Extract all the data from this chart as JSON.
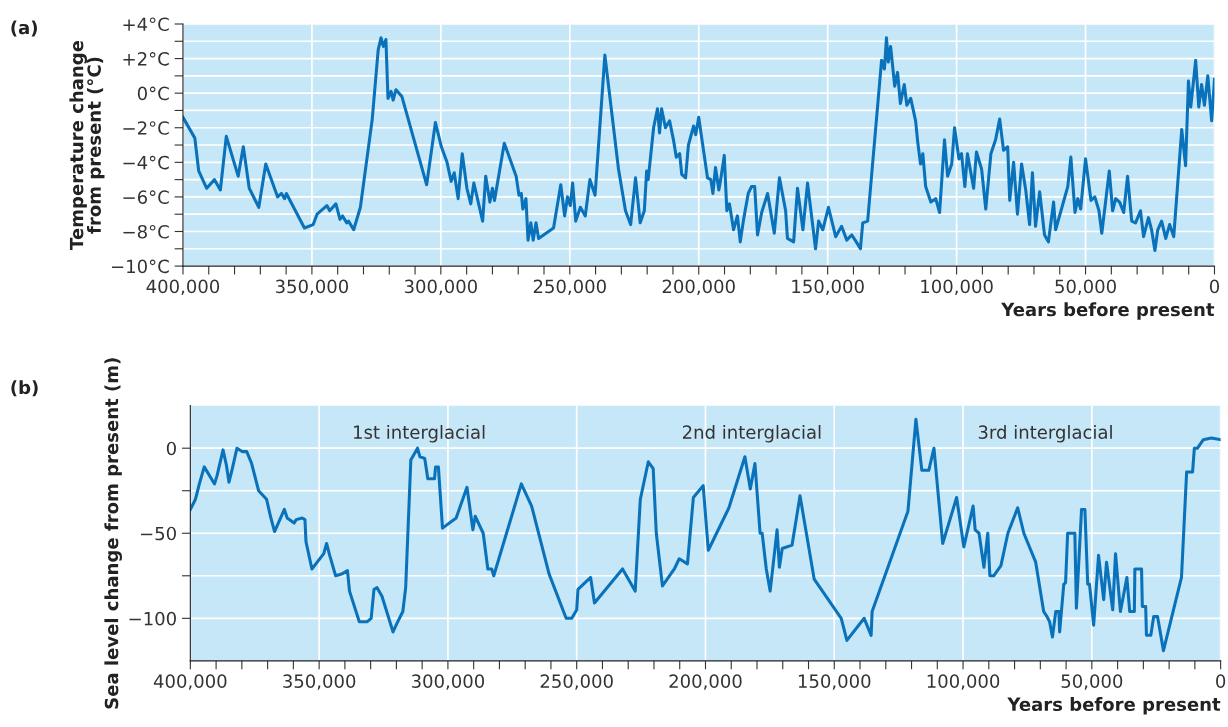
{
  "chart_data": [
    {
      "type": "line",
      "title": "(a)",
      "xlabel": "Years before present",
      "ylabel": "Temperature change\nfrom present (°C)",
      "xlim": [
        400000,
        0
      ],
      "ylim": [
        -10,
        4
      ],
      "xticks": [
        {
          "value": 400000,
          "label": "400,000"
        },
        {
          "value": 390000,
          "label": null
        },
        {
          "value": 380000,
          "label": null
        },
        {
          "value": 370000,
          "label": null
        },
        {
          "value": 360000,
          "label": null
        },
        {
          "value": 350000,
          "label": "350,000"
        },
        {
          "value": 340000,
          "label": null
        },
        {
          "value": 330000,
          "label": null
        },
        {
          "value": 320000,
          "label": null
        },
        {
          "value": 310000,
          "label": null
        },
        {
          "value": 300000,
          "label": "300,000"
        },
        {
          "value": 290000,
          "label": null
        },
        {
          "value": 280000,
          "label": null
        },
        {
          "value": 270000,
          "label": null
        },
        {
          "value": 260000,
          "label": null
        },
        {
          "value": 250000,
          "label": "250,000"
        },
        {
          "value": 240000,
          "label": null
        },
        {
          "value": 230000,
          "label": null
        },
        {
          "value": 220000,
          "label": null
        },
        {
          "value": 210000,
          "label": null
        },
        {
          "value": 200000,
          "label": "200,000"
        },
        {
          "value": 190000,
          "label": null
        },
        {
          "value": 180000,
          "label": null
        },
        {
          "value": 170000,
          "label": null
        },
        {
          "value": 160000,
          "label": null
        },
        {
          "value": 150000,
          "label": "150,000"
        },
        {
          "value": 140000,
          "label": null
        },
        {
          "value": 130000,
          "label": null
        },
        {
          "value": 120000,
          "label": null
        },
        {
          "value": 110000,
          "label": null
        },
        {
          "value": 100000,
          "label": "100,000"
        },
        {
          "value": 90000,
          "label": null
        },
        {
          "value": 80000,
          "label": null
        },
        {
          "value": 70000,
          "label": null
        },
        {
          "value": 60000,
          "label": null
        },
        {
          "value": 50000,
          "label": "50,000"
        },
        {
          "value": 40000,
          "label": null
        },
        {
          "value": 30000,
          "label": null
        },
        {
          "value": 20000,
          "label": null
        },
        {
          "value": 10000,
          "label": null
        },
        {
          "value": 0,
          "label": "0"
        }
      ],
      "yticks": [
        {
          "value": -10,
          "label": "−10°C"
        },
        {
          "value": -9,
          "label": null
        },
        {
          "value": -8,
          "label": "−8°C"
        },
        {
          "value": -7,
          "label": null
        },
        {
          "value": -6,
          "label": "−6°C"
        },
        {
          "value": -5,
          "label": null
        },
        {
          "value": -4,
          "label": "−4°C"
        },
        {
          "value": -3,
          "label": null
        },
        {
          "value": -2,
          "label": "−2°C"
        },
        {
          "value": -1,
          "label": null
        },
        {
          "value": 0,
          "label": "0°C"
        },
        {
          "value": 1,
          "label": null
        },
        {
          "value": 2,
          "label": "+2°C"
        },
        {
          "value": 3,
          "label": null
        },
        {
          "value": 4,
          "label": "+4°C"
        }
      ],
      "grid": true,
      "legend": false,
      "series": [
        {
          "color": "#0a72ba",
          "x": [
            400000,
            395400,
            393900,
            390800,
            387800,
            385500,
            383200,
            378600,
            376600,
            374300,
            370600,
            367900,
            363300,
            361800,
            360600,
            359900,
            352900,
            349500,
            348000,
            344200,
            343100,
            340700,
            339100,
            338100,
            336500,
            335800,
            333800,
            331200,
            326600,
            324300,
            323200,
            322300,
            321300,
            320500,
            319300,
            318500,
            317400,
            315100,
            305500,
            302100,
            299800,
            297600,
            296000,
            294800,
            293300,
            291700,
            289900,
            288400,
            287200,
            283800,
            282600,
            281000,
            280000,
            279200,
            275400,
            270800,
            269700,
            268800,
            268200,
            267000,
            266200,
            265100,
            264200,
            263100,
            262100,
            256300,
            253500,
            252000,
            250900,
            249800,
            248900,
            247700,
            245900,
            244000,
            242200,
            240200,
            236400,
            231100,
            228400,
            226400,
            224500,
            222700,
            221100,
            220200,
            219600,
            217500,
            216000,
            215200,
            214400,
            212900,
            211300,
            209800,
            208700,
            207400,
            206600,
            205100,
            204000,
            202000,
            201200,
            200000,
            196600,
            195300,
            194500,
            193500,
            192200,
            191500,
            190100,
            189100,
            188100,
            186500,
            185000,
            183900,
            182600,
            180800,
            179500,
            178300,
            177200,
            175600,
            173300,
            170700,
            168700,
            166300,
            165600,
            163200,
            161700,
            159600,
            157800,
            154700,
            153500,
            151900,
            149700,
            146900,
            144600,
            142600,
            140700,
            138900,
            137300,
            136400,
            134500,
            129100,
            128000,
            127200,
            126500,
            125600,
            124000,
            122900,
            121800,
            120300,
            119300,
            117800,
            115900,
            115100,
            114000,
            113100,
            112000,
            110000,
            108100,
            106600,
            104700,
            103500,
            101900,
            100800,
            99100,
            98100,
            96800,
            95800,
            93400,
            92300,
            90300,
            88700,
            86700,
            84900,
            83300,
            81800,
            80200,
            79400,
            77900,
            76400,
            74800,
            73200,
            71700,
            70600,
            69400,
            67800,
            65900,
            64400,
            62400,
            61600,
            56900,
            55700,
            54100,
            53000,
            51900,
            50000,
            47900,
            46400,
            44800,
            43700,
            40800,
            39500,
            38300,
            36800,
            35200,
            33700,
            32100,
            30600,
            28700,
            27500,
            25600,
            24400,
            23100,
            22000,
            20500,
            18900,
            17400,
            15800,
            12700,
            11200,
            10100,
            9200,
            7300,
            6100,
            5000,
            3900,
            2600,
            1100,
            0
          ],
          "values": [
            -1.4,
            -2.6,
            -4.5,
            -5.5,
            -5.0,
            -5.6,
            -2.5,
            -4.8,
            -3.1,
            -5.5,
            -6.6,
            -4.1,
            -6.0,
            -5.8,
            -6.1,
            -5.8,
            -7.8,
            -7.6,
            -7.0,
            -6.5,
            -6.8,
            -6.4,
            -7.3,
            -7.1,
            -7.5,
            -7.4,
            -7.9,
            -6.6,
            -1.5,
            2.5,
            3.2,
            2.7,
            3.1,
            -0.3,
            0.1,
            -0.4,
            0.2,
            -0.2,
            -5.3,
            -1.7,
            -3.1,
            -4.0,
            -5.1,
            -4.6,
            -6.1,
            -3.5,
            -5.5,
            -6.4,
            -5.2,
            -7.4,
            -4.8,
            -6.3,
            -5.5,
            -6.2,
            -2.9,
            -4.8,
            -5.9,
            -5.8,
            -6.7,
            -6.1,
            -8.5,
            -7.5,
            -8.5,
            -7.5,
            -8.4,
            -7.8,
            -5.3,
            -7.1,
            -6.0,
            -6.5,
            -5.2,
            -7.4,
            -6.6,
            -7.1,
            -5.0,
            -5.9,
            2.2,
            -4.4,
            -6.8,
            -7.6,
            -4.9,
            -7.5,
            -6.8,
            -4.5,
            -5.0,
            -2.0,
            -0.9,
            -2.3,
            -0.9,
            -2.0,
            -1.6,
            -2.7,
            -3.7,
            -3.5,
            -4.7,
            -4.9,
            -3.0,
            -1.9,
            -2.4,
            -1.4,
            -4.9,
            -5.0,
            -5.8,
            -4.3,
            -5.6,
            -5.0,
            -3.6,
            -6.8,
            -6.4,
            -7.9,
            -7.1,
            -8.6,
            -7.3,
            -5.8,
            -5.4,
            -5.4,
            -8.2,
            -6.9,
            -5.8,
            -8.1,
            -4.9,
            -6.8,
            -8.4,
            -8.6,
            -5.5,
            -7.9,
            -5.2,
            -9.0,
            -7.4,
            -7.9,
            -6.6,
            -8.3,
            -7.7,
            -8.5,
            -8.2,
            -8.6,
            -9.0,
            -7.5,
            -7.4,
            1.9,
            1.4,
            3.2,
            1.8,
            2.7,
            0.4,
            1.2,
            -0.6,
            0.5,
            -0.7,
            -0.3,
            -1.6,
            -2.8,
            -4.1,
            -3.5,
            -5.4,
            -6.3,
            -6.1,
            -6.9,
            -2.7,
            -4.8,
            -4.1,
            -2.0,
            -3.8,
            -3.5,
            -5.4,
            -3.5,
            -5.5,
            -3.4,
            -4.4,
            -6.7,
            -3.5,
            -2.7,
            -1.5,
            -3.3,
            -3.1,
            -6.2,
            -4.0,
            -7.0,
            -4.1,
            -5.6,
            -7.6,
            -4.6,
            -7.7,
            -5.7,
            -8.2,
            -8.6,
            -6.3,
            -7.9,
            -5.4,
            -3.7,
            -6.9,
            -6.1,
            -6.7,
            -3.8,
            -6.2,
            -6.0,
            -6.8,
            -8.1,
            -4.5,
            -6.8,
            -6.1,
            -6.3,
            -6.9,
            -4.8,
            -7.4,
            -7.5,
            -6.8,
            -8.3,
            -7.2,
            -7.9,
            -9.1,
            -7.9,
            -7.4,
            -8.4,
            -7.6,
            -8.3,
            -2.1,
            -4.2,
            0.7,
            -0.8,
            1.9,
            -0.8,
            0.5,
            -0.7,
            1.0,
            -1.6,
            0.8
          ]
        }
      ]
    },
    {
      "type": "line",
      "title": "(b)",
      "xlabel": "Years before present",
      "ylabel": "Sea level change from present (m)",
      "xlim": [
        400000,
        0
      ],
      "ylim": [
        -125,
        25
      ],
      "xticks": [
        {
          "value": 400000,
          "label": "400,000"
        },
        {
          "value": 390000,
          "label": null
        },
        {
          "value": 380000,
          "label": null
        },
        {
          "value": 370000,
          "label": null
        },
        {
          "value": 360000,
          "label": null
        },
        {
          "value": 350000,
          "label": "350,000"
        },
        {
          "value": 340000,
          "label": null
        },
        {
          "value": 330000,
          "label": null
        },
        {
          "value": 320000,
          "label": null
        },
        {
          "value": 310000,
          "label": null
        },
        {
          "value": 300000,
          "label": "300,000"
        },
        {
          "value": 290000,
          "label": null
        },
        {
          "value": 280000,
          "label": null
        },
        {
          "value": 270000,
          "label": null
        },
        {
          "value": 260000,
          "label": null
        },
        {
          "value": 250000,
          "label": "250,000"
        },
        {
          "value": 240000,
          "label": null
        },
        {
          "value": 230000,
          "label": null
        },
        {
          "value": 220000,
          "label": null
        },
        {
          "value": 210000,
          "label": null
        },
        {
          "value": 200000,
          "label": "200,000"
        },
        {
          "value": 190000,
          "label": null
        },
        {
          "value": 180000,
          "label": null
        },
        {
          "value": 170000,
          "label": null
        },
        {
          "value": 160000,
          "label": null
        },
        {
          "value": 150000,
          "label": "150,000"
        },
        {
          "value": 140000,
          "label": null
        },
        {
          "value": 130000,
          "label": null
        },
        {
          "value": 120000,
          "label": null
        },
        {
          "value": 110000,
          "label": null
        },
        {
          "value": 100000,
          "label": "100,000"
        },
        {
          "value": 90000,
          "label": null
        },
        {
          "value": 80000,
          "label": null
        },
        {
          "value": 70000,
          "label": null
        },
        {
          "value": 60000,
          "label": null
        },
        {
          "value": 50000,
          "label": "50,000"
        },
        {
          "value": 40000,
          "label": null
        },
        {
          "value": 30000,
          "label": null
        },
        {
          "value": 20000,
          "label": null
        },
        {
          "value": 10000,
          "label": null
        },
        {
          "value": 0,
          "label": "0"
        }
      ],
      "yticks": [
        {
          "value": -100,
          "label": "−100"
        },
        {
          "value": -75,
          "label": null
        },
        {
          "value": -50,
          "label": "−50"
        },
        {
          "value": -25,
          "label": null
        },
        {
          "value": 0,
          "label": "0"
        }
      ],
      "grid": true,
      "legend": false,
      "annotations": [
        "1st interglacial",
        "2nd interglacial",
        "3rd interglacial"
      ],
      "series": [
        {
          "color": "#0a72ba",
          "x": [
            400000,
            398000,
            396500,
            394600,
            390600,
            389600,
            387300,
            386000,
            385000,
            383700,
            381900,
            379900,
            378100,
            376200,
            373500,
            370400,
            368900,
            367300,
            363500,
            362400,
            359700,
            358900,
            356600,
            355500,
            355100,
            352800,
            348200,
            347100,
            345900,
            343600,
            341300,
            339000,
            338200,
            334400,
            331300,
            329800,
            328700,
            327500,
            325600,
            321300,
            319800,
            317500,
            316400,
            314400,
            311800,
            310900,
            309000,
            307800,
            305200,
            304800,
            303700,
            302100,
            296800,
            292600,
            290300,
            289400,
            286300,
            284500,
            283000,
            282200,
            271500,
            267500,
            260700,
            254100,
            251900,
            250000,
            249500,
            244600,
            243100,
            232200,
            227300,
            225300,
            222200,
            220300,
            219100,
            216700,
            212100,
            210200,
            207000,
            204700,
            200900,
            198900,
            190900,
            184700,
            182600,
            180800,
            178800,
            178000,
            176400,
            174900,
            172200,
            171300,
            170200,
            166400,
            163300,
            157800,
            147300,
            145100,
            138400,
            135700,
            135300,
            121400,
            118300,
            116000,
            113300,
            111300,
            107900,
            102500,
            99700,
            96100,
            95300,
            93800,
            91900,
            90400,
            89600,
            88100,
            85300,
            82600,
            78800,
            76400,
            71800,
            68700,
            67400,
            66400,
            65300,
            64000,
            62800,
            62500,
            60900,
            60200,
            59700,
            59400,
            56600,
            56000,
            54000,
            52700,
            51600,
            50900,
            49300,
            47400,
            45400,
            44300,
            41900,
            40800,
            38900,
            36400,
            35300,
            33500,
            33300,
            30700,
            30400,
            29100,
            28800,
            27100,
            26000,
            24500,
            22200,
            15200,
            13200,
            10900,
            10200,
            9000,
            6700,
            3600,
            0
          ],
          "values": [
            -36,
            -30,
            -21,
            -11,
            -21,
            -16,
            -1,
            -10,
            -20,
            -12,
            0,
            -2,
            -2,
            -9,
            -25,
            -30,
            -40,
            -49,
            -36,
            -41,
            -44,
            -42,
            -41,
            -42,
            -55,
            -71,
            -62,
            -56,
            -63,
            -75,
            -74,
            -72,
            -84,
            -102,
            -102,
            -100,
            -83,
            -82,
            -87,
            -108,
            -103,
            -96,
            -82,
            -7,
            0,
            -5,
            -6,
            -18,
            -18,
            -11,
            -11,
            -47,
            -41,
            -23,
            -48,
            -40,
            -50,
            -71,
            -71,
            -75,
            -21,
            -34,
            -74,
            -100,
            -100,
            -95,
            -83,
            -76,
            -91,
            -71,
            -84,
            -30,
            -8,
            -12,
            -50,
            -81,
            -71,
            -65,
            -68,
            -29,
            -22,
            -60,
            -35,
            -5,
            -24,
            -9,
            -50,
            -50,
            -71,
            -84,
            -48,
            -70,
            -59,
            -57,
            -28,
            -77,
            -100,
            -113,
            -100,
            -110,
            -96,
            -37,
            17,
            -13,
            -13,
            0,
            -56,
            -29,
            -58,
            -34,
            -48,
            -50,
            -70,
            -50,
            -75,
            -75,
            -69,
            -50,
            -35,
            -50,
            -67,
            -96,
            -99,
            -102,
            -111,
            -96,
            -96,
            -108,
            -80,
            -79,
            -61,
            -50,
            -50,
            -94,
            -36,
            -36,
            -80,
            -80,
            -104,
            -63,
            -89,
            -67,
            -95,
            -62,
            -96,
            -76,
            -96,
            -96,
            -71,
            -71,
            -93,
            -93,
            -110,
            -110,
            -99,
            -99,
            -119,
            -76,
            -14,
            -14,
            0,
            0,
            5,
            6,
            5
          ]
        }
      ]
    }
  ]
}
